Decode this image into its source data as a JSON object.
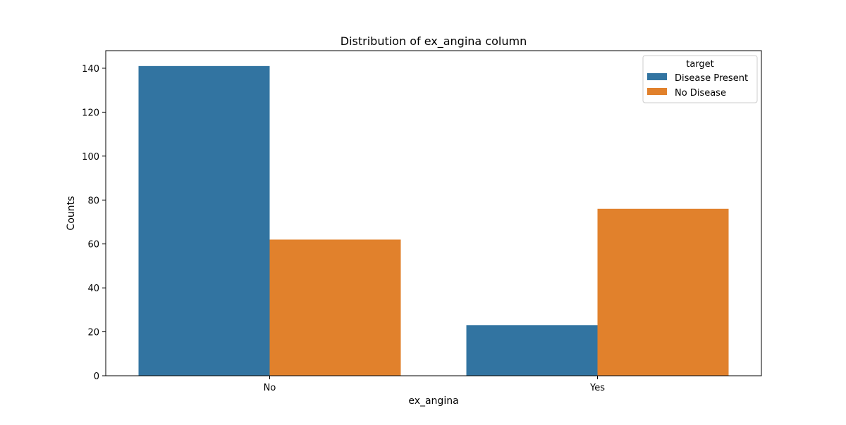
{
  "chart_data": {
    "type": "bar",
    "title": "Distribution of ex_angina column",
    "xlabel": "ex_angina",
    "ylabel": "Counts",
    "categories": [
      "No",
      "Yes"
    ],
    "series": [
      {
        "name": "Disease Present",
        "color": "#3274a1",
        "values": [
          141,
          23
        ]
      },
      {
        "name": "No Disease",
        "color": "#e1812c",
        "values": [
          62,
          76
        ]
      }
    ],
    "ylim": [
      0,
      148
    ],
    "yticks": [
      0,
      20,
      40,
      60,
      80,
      100,
      120,
      140
    ],
    "grid": false,
    "legend": {
      "title": "target",
      "placement": "top-right"
    }
  }
}
